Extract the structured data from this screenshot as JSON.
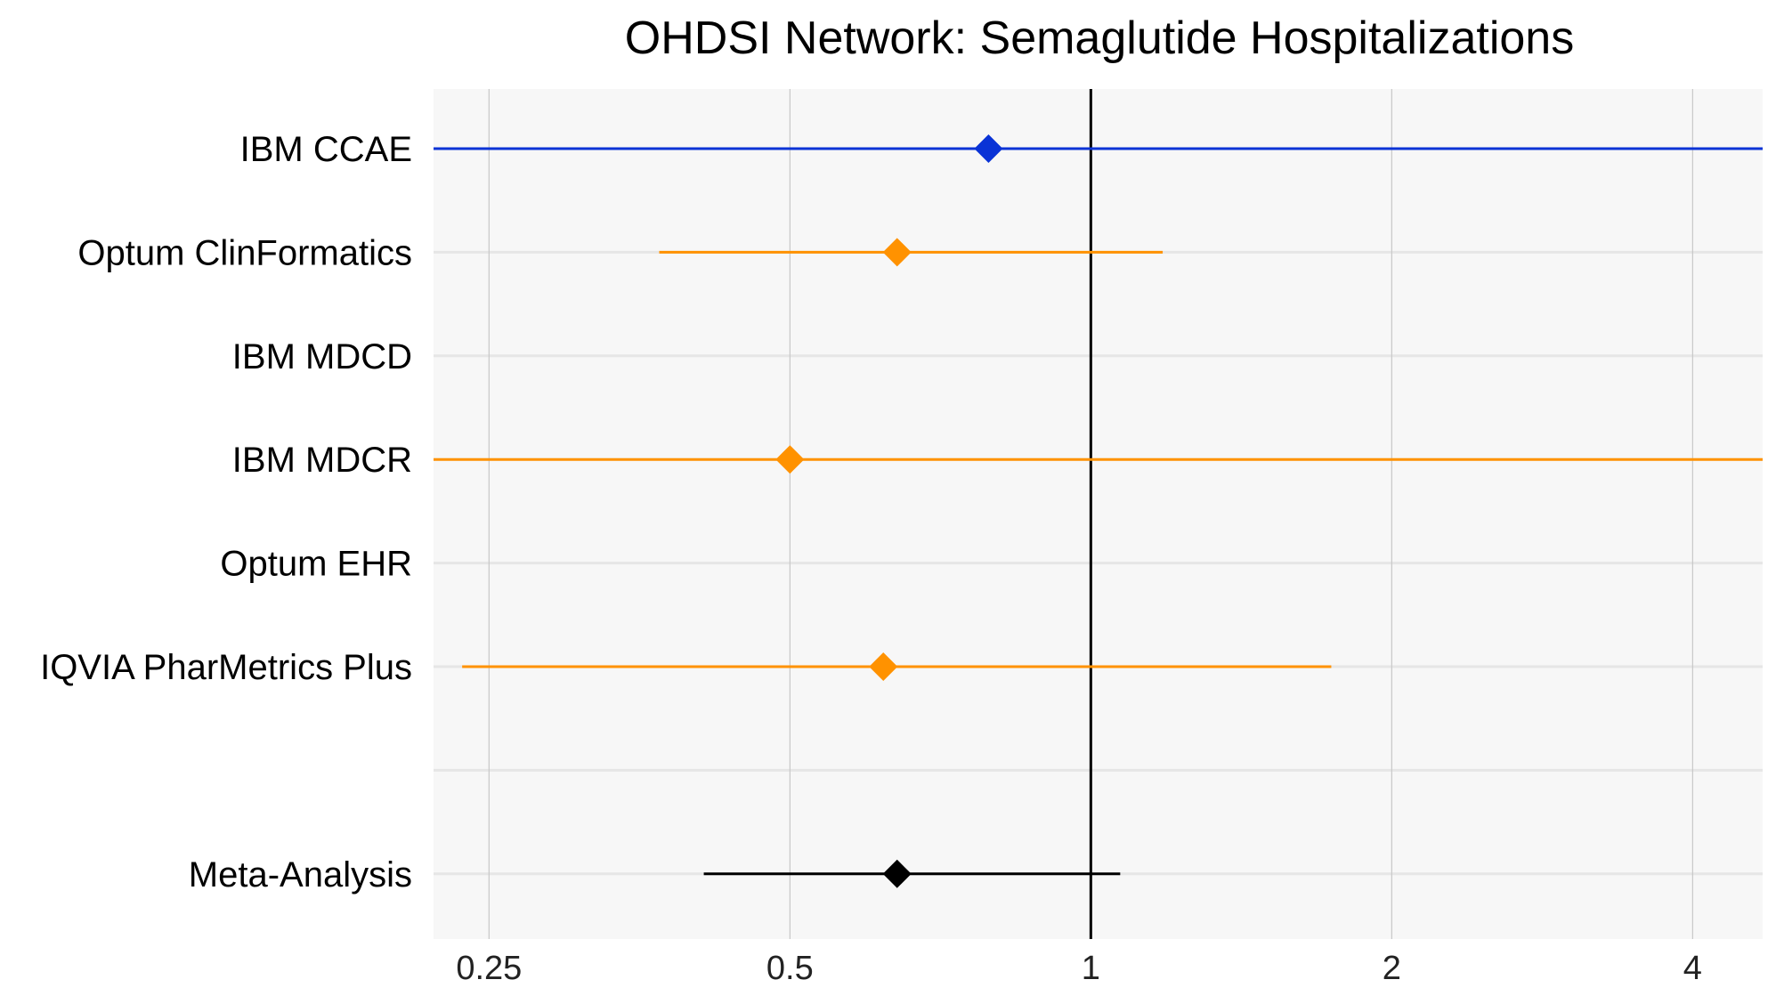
{
  "chart_data": {
    "type": "forest",
    "title": "OHDSI Network: Semaglutide Hospitalizations",
    "x_scale": "log2",
    "xlim": [
      0.22,
      4.7
    ],
    "x_ticks": [
      0.25,
      0.5,
      1,
      2,
      4
    ],
    "x_tick_labels": [
      "0.25",
      "0.5",
      "1",
      "2",
      "4"
    ],
    "reference_line": 1,
    "grid": true,
    "colors": {
      "panel_background": "#f7f7f7",
      "grid_major": "#e6e6e6",
      "grid_vertical": "#c8c8c8",
      "reference_line": "#000000",
      "blue": "#0a33d6",
      "orange": "#ff9200",
      "meta": "#000000"
    },
    "rows": [
      {
        "label": "IBM CCAE",
        "estimate": 0.79,
        "lower": 0.22,
        "upper": 4.7,
        "color": "blue"
      },
      {
        "label": "Optum ClinFormatics",
        "estimate": 0.64,
        "lower": 0.37,
        "upper": 1.18,
        "color": "orange"
      },
      {
        "label": "IBM MDCD",
        "estimate": null,
        "lower": null,
        "upper": null,
        "color": "orange"
      },
      {
        "label": "IBM MDCR",
        "estimate": 0.5,
        "lower": 0.22,
        "upper": 4.7,
        "color": "orange"
      },
      {
        "label": "Optum EHR",
        "estimate": null,
        "lower": null,
        "upper": null,
        "color": "orange"
      },
      {
        "label": "IQVIA PharMetrics Plus",
        "estimate": 0.62,
        "lower": 0.235,
        "upper": 1.74,
        "color": "orange"
      },
      {
        "label": "",
        "estimate": null,
        "lower": null,
        "upper": null,
        "color": "orange"
      },
      {
        "label": "Meta-Analysis",
        "estimate": 0.64,
        "lower": 0.41,
        "upper": 1.07,
        "color": "meta"
      }
    ]
  }
}
